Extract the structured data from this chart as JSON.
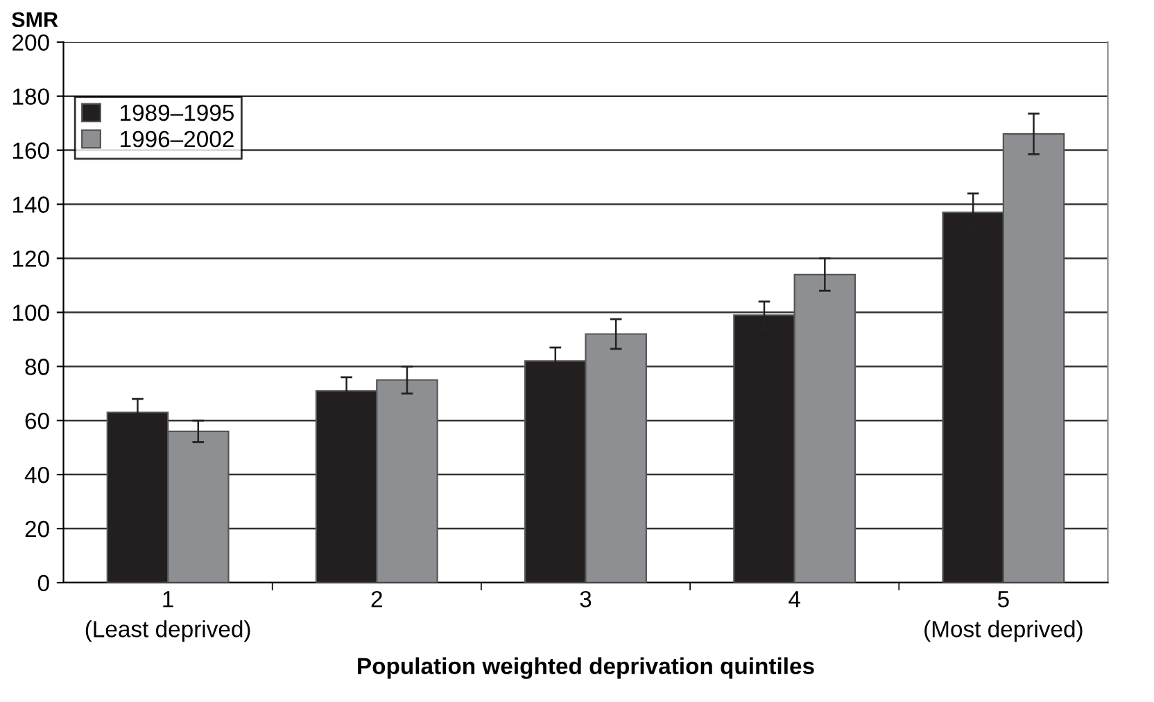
{
  "chart_data": {
    "type": "bar",
    "ylabel": "SMR",
    "xlabel": "Population weighted deprivation quintiles",
    "categories": [
      "1\n(Least deprived)",
      "2",
      "3",
      "4",
      "5\n(Most deprived)"
    ],
    "series": [
      {
        "name": "1989–1995",
        "color": "#231f20",
        "values": [
          63,
          71,
          82,
          99,
          137
        ],
        "errors": [
          5,
          5,
          5,
          5,
          7
        ]
      },
      {
        "name": "1996–2002",
        "color": "#8e8f93",
        "values": [
          56,
          75,
          92,
          114,
          166
        ],
        "errors": [
          4,
          5,
          5.5,
          6,
          7.5
        ]
      }
    ],
    "ylim": [
      0,
      200
    ],
    "yticks": [
      0,
      20,
      40,
      60,
      80,
      100,
      120,
      140,
      160,
      180,
      200
    ],
    "grid": "y",
    "legend": "top left"
  }
}
